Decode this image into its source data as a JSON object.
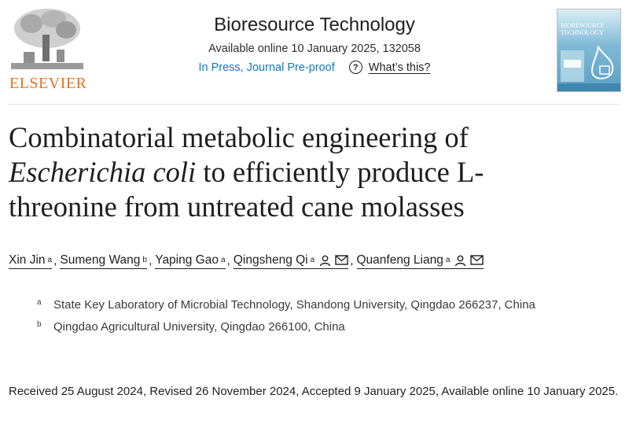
{
  "publisher": {
    "name": "ELSEVIER",
    "logo_icon": "elsevier-tree-logo"
  },
  "journal": {
    "title": "Bioresource Technology",
    "availability": "Available online 10 January 2025, 132058",
    "status_link": "In Press, Journal Pre-proof",
    "help_icon": "question-circle-icon",
    "help_link": "What’s this?",
    "cover_title": "BIORESOURCE TECHNOLOGY"
  },
  "article": {
    "title_part1": "Combinatorial metabolic engineering of ",
    "title_italic": "Escherichia coli",
    "title_part2": " to efficiently produce L-threonine from untreated cane molasses"
  },
  "authors": [
    {
      "name": "Xin Jin",
      "affil": "a",
      "sep": ","
    },
    {
      "name": "Sumeng Wang",
      "affil": "b",
      "sep": ","
    },
    {
      "name": "Yaping Gao",
      "affil": "a",
      "sep": ","
    },
    {
      "name": "Qingsheng Qi",
      "affil": "a",
      "sep": ",",
      "icons": [
        "person-icon",
        "envelope-icon"
      ]
    },
    {
      "name": "Quanfeng Liang",
      "affil": "a",
      "sep": "",
      "icons": [
        "person-icon",
        "envelope-icon"
      ]
    }
  ],
  "affiliations": [
    {
      "marker": "a",
      "text": "State Key Laboratory of Microbial Technology, Shandong University, Qingdao 266237, China"
    },
    {
      "marker": "b",
      "text": "Qingdao Agricultural University, Qingdao 266100, China"
    }
  ],
  "dates": "Received 25 August 2024, Revised 26 November 2024, Accepted 9 January 2025, Available online 10 January 2025.",
  "colors": {
    "publisher_orange": "#e9711c",
    "link_blue": "#0c7dbb",
    "text": "#1f1f1f"
  }
}
